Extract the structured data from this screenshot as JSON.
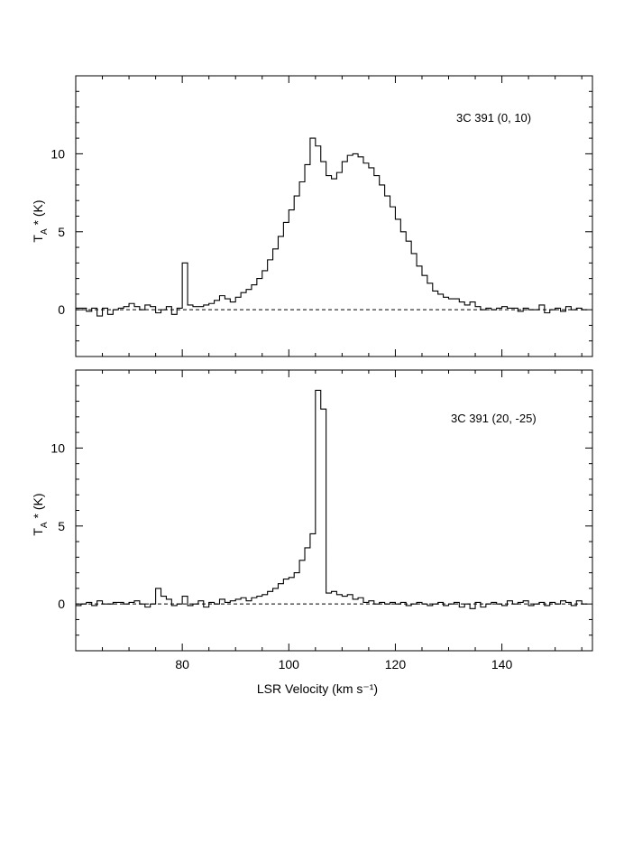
{
  "chart_data": [
    {
      "type": "line",
      "style": "step",
      "label": "3C 391 (0, 10)",
      "xlabel": "LSR Velocity (km s⁻¹)",
      "ylabel": {
        "base": "T",
        "sub": "A",
        "rest": " * (K)"
      },
      "xlim": [
        60,
        157
      ],
      "ylim": [
        -3,
        15
      ],
      "yticks": [
        0,
        5,
        10
      ],
      "ytick_labels": [
        "0",
        "5",
        "10"
      ],
      "baseline": 0,
      "series": [
        {
          "x": [
            60.0,
            61.0,
            62.0,
            63.0,
            64.0,
            65.0,
            66.0,
            67.0,
            68.0,
            69.0,
            70.0,
            71.0,
            72.0,
            73.0,
            74.0,
            75.0,
            76.0,
            77.0,
            78.0,
            79.0,
            80.0,
            81.0,
            82.0,
            83.0,
            84.0,
            85.0,
            86.0,
            87.0,
            88.0,
            89.0,
            90.0,
            91.0,
            92.0,
            93.0,
            94.0,
            95.0,
            96.0,
            97.0,
            98.0,
            99.0,
            100.0,
            101.0,
            102.0,
            103.0,
            104.0,
            105.0,
            106.0,
            107.0,
            108.0,
            109.0,
            110.0,
            111.0,
            112.0,
            113.0,
            114.0,
            115.0,
            116.0,
            117.0,
            118.0,
            119.0,
            120.0,
            121.0,
            122.0,
            123.0,
            124.0,
            125.0,
            126.0,
            127.0,
            128.0,
            129.0,
            130.0,
            131.0,
            132.0,
            133.0,
            134.0,
            135.0,
            136.0,
            137.0,
            138.0,
            139.0,
            140.0,
            141.0,
            142.0,
            143.0,
            144.0,
            145.0,
            146.0,
            147.0,
            148.0,
            149.0,
            150.0,
            151.0,
            152.0,
            153.0,
            154.0,
            155.0
          ],
          "values": [
            0.1,
            0.1,
            -0.1,
            0.1,
            -0.4,
            0.1,
            -0.3,
            0.0,
            0.1,
            0.2,
            0.4,
            0.2,
            0.0,
            0.3,
            0.2,
            -0.2,
            0.0,
            0.2,
            -0.3,
            0.1,
            3.0,
            0.3,
            0.2,
            0.2,
            0.3,
            0.4,
            0.6,
            0.9,
            0.7,
            0.5,
            0.8,
            1.1,
            1.3,
            1.6,
            2.0,
            2.5,
            3.2,
            3.9,
            4.7,
            5.6,
            6.4,
            7.3,
            8.2,
            9.3,
            11.0,
            10.5,
            9.5,
            8.6,
            8.4,
            8.8,
            9.5,
            9.9,
            10.0,
            9.8,
            9.4,
            9.1,
            8.6,
            8.0,
            7.3,
            6.6,
            5.8,
            5.0,
            4.4,
            3.6,
            2.8,
            2.2,
            1.7,
            1.2,
            1.0,
            0.8,
            0.7,
            0.7,
            0.5,
            0.3,
            0.5,
            0.2,
            0.0,
            0.1,
            0.0,
            0.1,
            0.2,
            0.1,
            0.1,
            -0.1,
            0.1,
            0.0,
            0.0,
            0.3,
            -0.2,
            0.0,
            0.1,
            -0.1,
            0.2,
            0.0,
            0.1,
            0.0
          ]
        }
      ]
    },
    {
      "type": "line",
      "style": "step",
      "label": "3C 391 (20, -25)",
      "xlabel": "LSR Velocity (km s⁻¹)",
      "ylabel": {
        "base": "T",
        "sub": "A",
        "rest": " * (K)"
      },
      "xlim": [
        60,
        157
      ],
      "ylim": [
        -3,
        15
      ],
      "xticks": [
        80,
        100,
        120,
        140
      ],
      "xtick_labels": [
        "80",
        "100",
        "120",
        "140"
      ],
      "yticks": [
        0,
        5,
        10
      ],
      "ytick_labels": [
        "0",
        "5",
        "10"
      ],
      "baseline": 0,
      "series": [
        {
          "x": [
            60.0,
            61.0,
            62.0,
            63.0,
            64.0,
            65.0,
            66.0,
            67.0,
            68.0,
            69.0,
            70.0,
            71.0,
            72.0,
            73.0,
            74.0,
            75.0,
            76.0,
            77.0,
            78.0,
            79.0,
            80.0,
            81.0,
            82.0,
            83.0,
            84.0,
            85.0,
            86.0,
            87.0,
            88.0,
            89.0,
            90.0,
            91.0,
            92.0,
            93.0,
            94.0,
            95.0,
            96.0,
            97.0,
            98.0,
            99.0,
            100.0,
            101.0,
            102.0,
            103.0,
            104.0,
            105.0,
            106.0,
            107.0,
            108.0,
            109.0,
            110.0,
            111.0,
            112.0,
            113.0,
            114.0,
            115.0,
            116.0,
            117.0,
            118.0,
            119.0,
            120.0,
            121.0,
            122.0,
            123.0,
            124.0,
            125.0,
            126.0,
            127.0,
            128.0,
            129.0,
            130.0,
            131.0,
            132.0,
            133.0,
            134.0,
            135.0,
            136.0,
            137.0,
            138.0,
            139.0,
            140.0,
            141.0,
            142.0,
            143.0,
            144.0,
            145.0,
            146.0,
            147.0,
            148.0,
            149.0,
            150.0,
            151.0,
            152.0,
            153.0,
            154.0,
            155.0
          ],
          "values": [
            -0.1,
            0.0,
            0.1,
            -0.1,
            0.2,
            0.0,
            0.0,
            0.1,
            0.1,
            0.0,
            0.1,
            0.2,
            0.0,
            -0.2,
            0.0,
            1.0,
            0.5,
            0.3,
            -0.1,
            0.0,
            0.5,
            -0.1,
            0.0,
            0.2,
            -0.2,
            0.1,
            0.0,
            0.3,
            0.1,
            0.2,
            0.3,
            0.4,
            0.2,
            0.4,
            0.5,
            0.6,
            0.8,
            1.0,
            1.3,
            1.6,
            1.7,
            2.0,
            2.8,
            3.6,
            4.5,
            13.7,
            12.5,
            0.7,
            0.8,
            0.6,
            0.5,
            0.6,
            0.3,
            0.4,
            0.1,
            0.2,
            0.0,
            0.1,
            0.0,
            0.1,
            0.0,
            0.1,
            -0.1,
            0.0,
            0.1,
            0.0,
            -0.1,
            0.0,
            0.1,
            -0.1,
            0.0,
            0.1,
            -0.2,
            0.0,
            -0.3,
            0.1,
            -0.2,
            0.0,
            0.1,
            0.0,
            -0.1,
            0.2,
            0.0,
            0.1,
            0.2,
            -0.1,
            0.0,
            0.1,
            -0.1,
            0.1,
            0.0,
            0.2,
            0.1,
            -0.1,
            0.2,
            0.0
          ]
        }
      ]
    }
  ]
}
